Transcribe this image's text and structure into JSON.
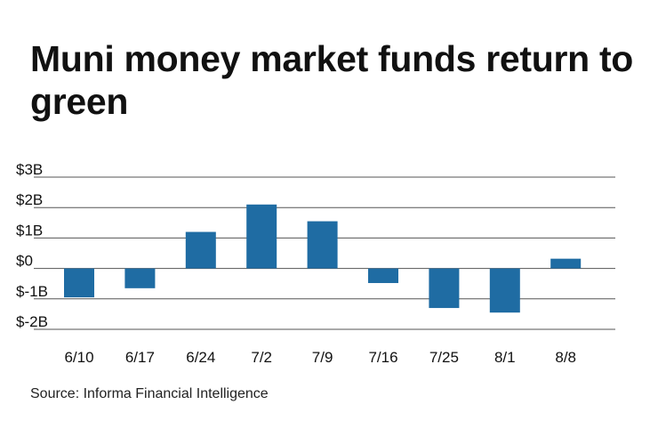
{
  "title": "Muni money market funds return to green",
  "source": "Source: Informa Financial Intelligence",
  "colors": {
    "bar": "#1f6ca3",
    "grid": "#555555",
    "text": "#111111"
  },
  "chart_data": {
    "type": "bar",
    "title": "Muni money market funds return to green",
    "xlabel": "",
    "ylabel": "",
    "categories": [
      "6/10",
      "6/17",
      "6/24",
      "7/2",
      "7/9",
      "7/16",
      "7/25",
      "8/1",
      "8/8"
    ],
    "values": [
      -0.95,
      -0.65,
      1.2,
      2.1,
      1.55,
      -0.48,
      -1.3,
      -1.45,
      0.32
    ],
    "ylim": [
      -2,
      3
    ],
    "yticks": [
      3,
      2,
      1,
      0,
      -1,
      -2
    ],
    "ytick_labels": [
      "$3B",
      "$2B",
      "$1B",
      "$0",
      "$-1B",
      "$-2B"
    ],
    "grid": true,
    "legend": "none"
  }
}
